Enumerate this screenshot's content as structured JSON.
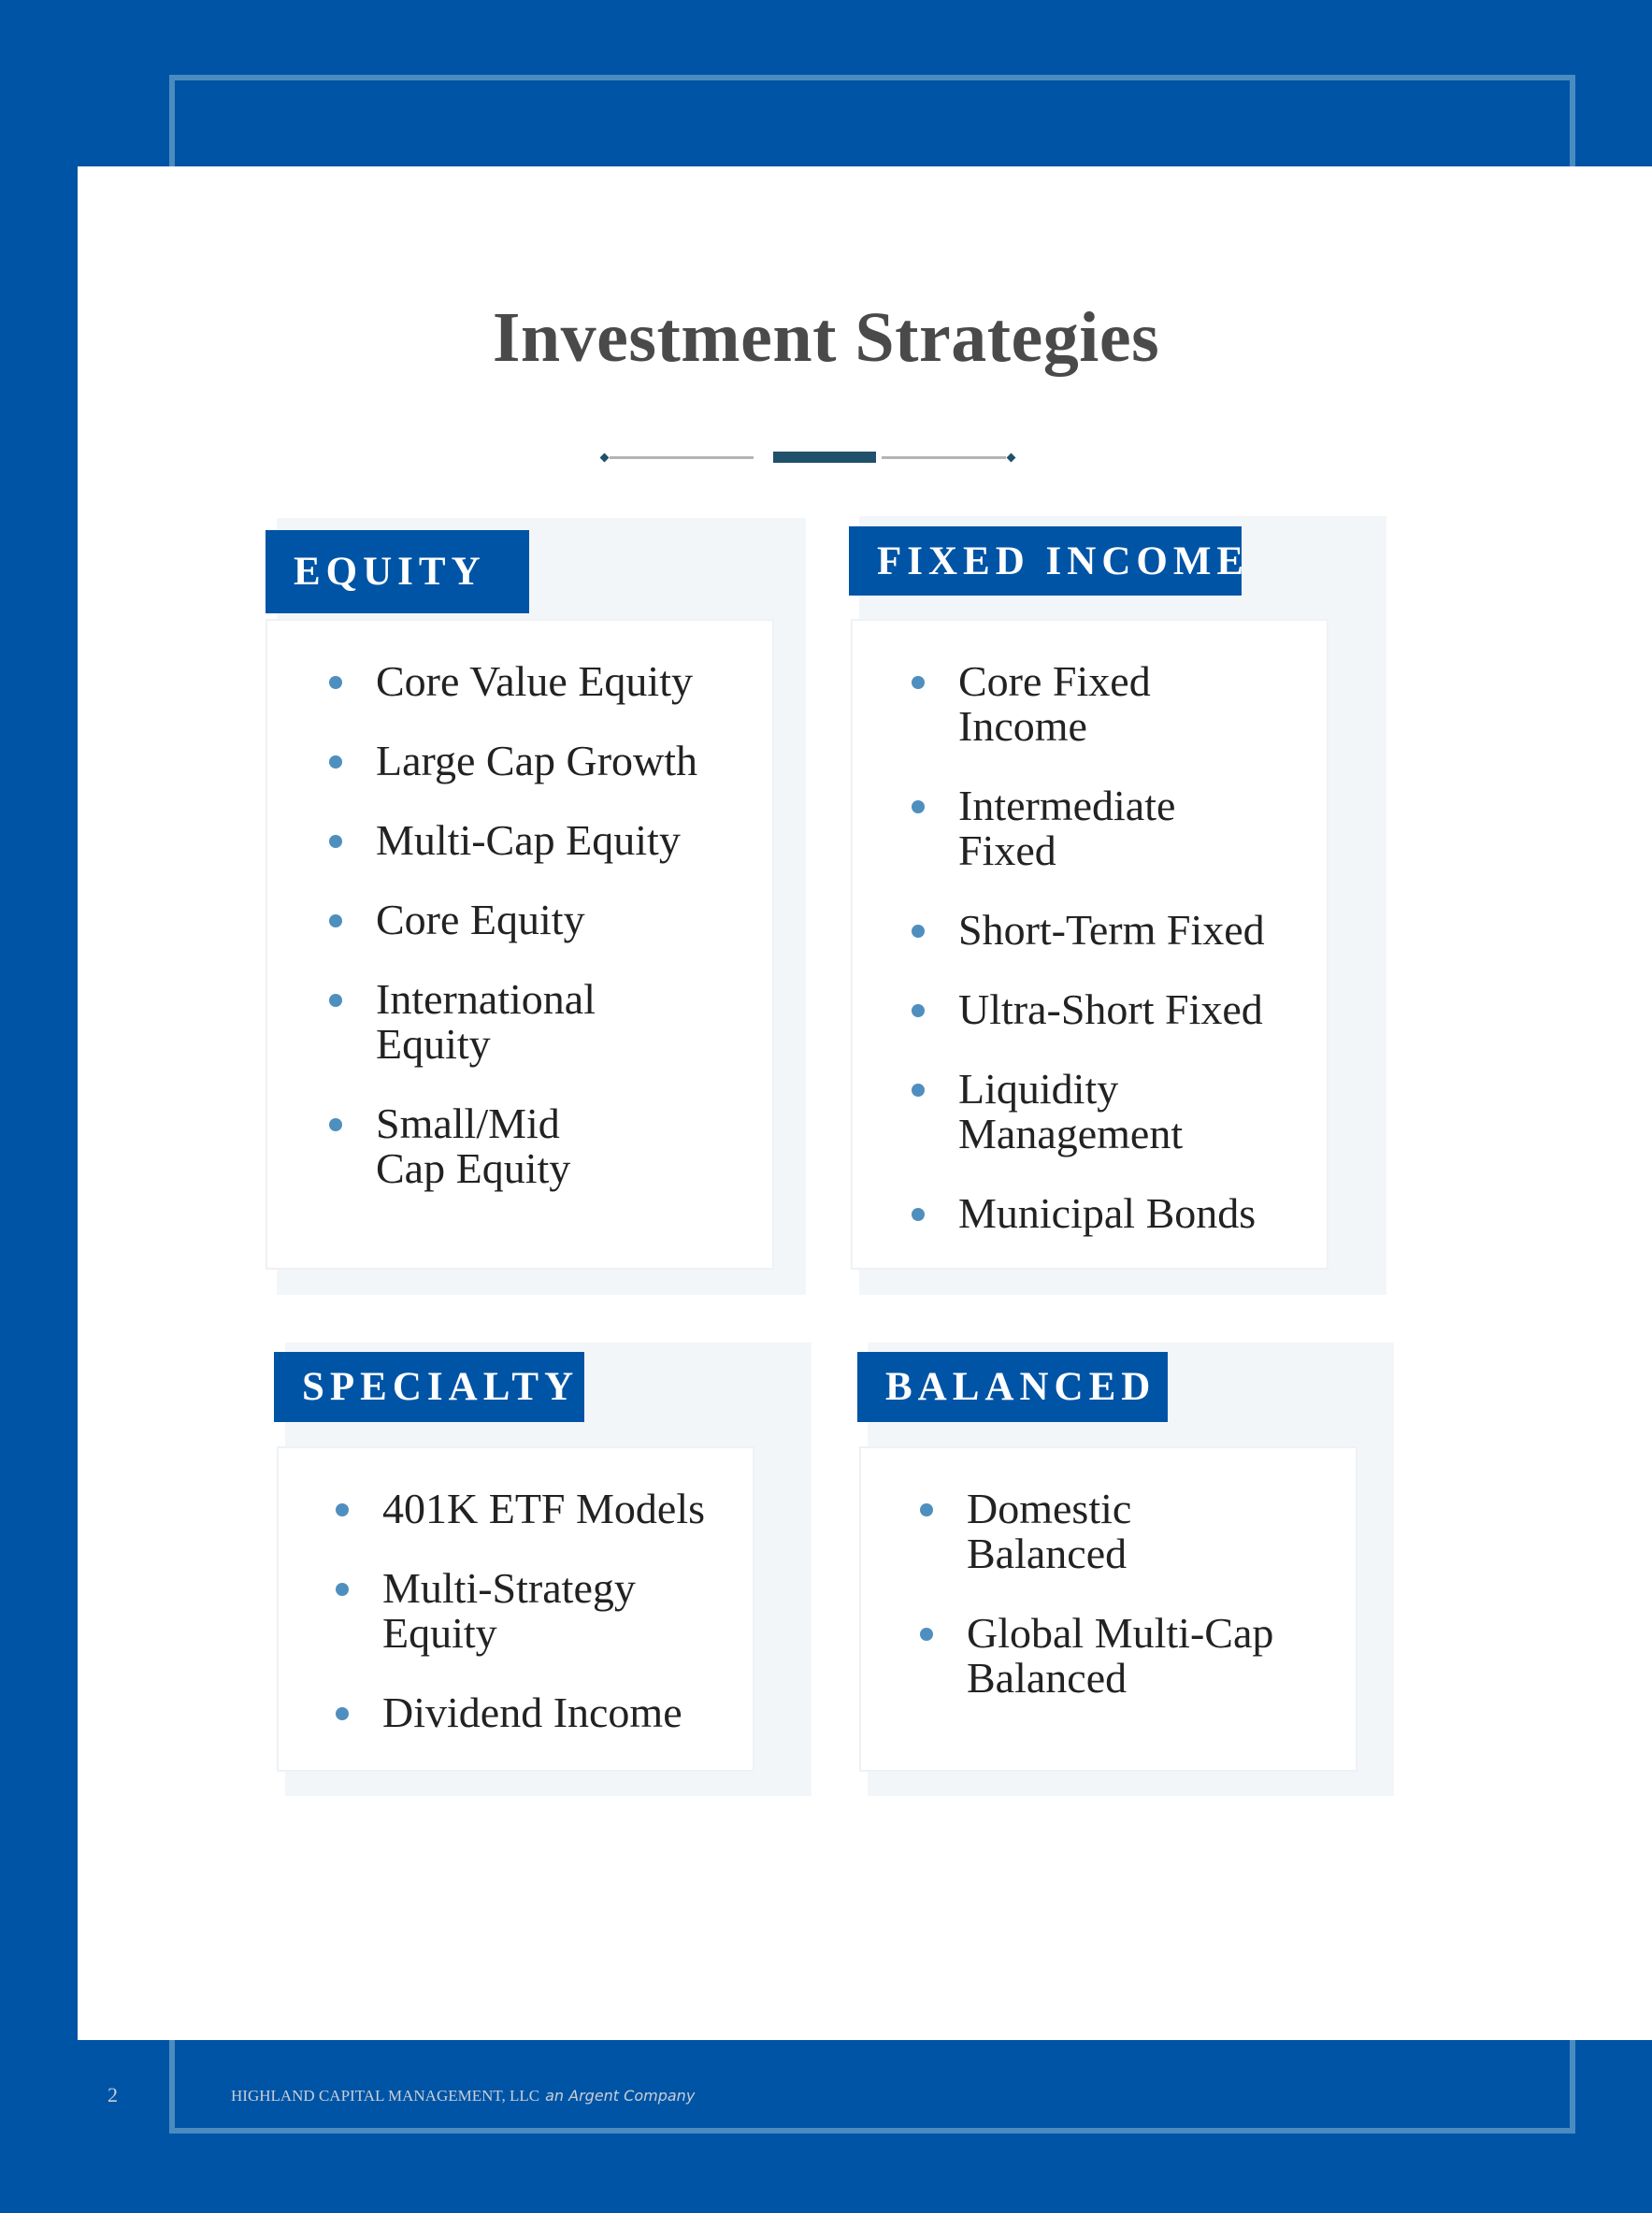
{
  "title": "Investment Strategies",
  "colors": {
    "brand_blue": "#0054a5",
    "frame": "#4b8cc0",
    "bullet": "#4f8fbf",
    "divider_accent": "#21506a"
  },
  "sections": [
    {
      "label": "EQUITY",
      "items": [
        "Core Value Equity",
        "Large Cap Growth",
        "Multi-Cap Equity",
        "Core Equity",
        "International\nEquity",
        "Small/Mid\nCap Equity"
      ]
    },
    {
      "label": "FIXED INCOME",
      "items": [
        "Core Fixed\nIncome",
        "Intermediate\nFixed",
        "Short-Term Fixed",
        "Ultra-Short Fixed",
        "Liquidity\nManagement",
        "Municipal Bonds"
      ]
    },
    {
      "label": "SPECIALTY",
      "items": [
        "401K ETF Models",
        "Multi-Strategy\nEquity",
        "Dividend Income"
      ]
    },
    {
      "label": "BALANCED",
      "items": [
        "Domestic\nBalanced",
        "Global Multi-Cap\nBalanced"
      ]
    }
  ],
  "footer": {
    "page_number": "2",
    "company": "HIGHLAND CAPITAL MANAGEMENT, LLC",
    "tagline": "an Argent Company"
  }
}
